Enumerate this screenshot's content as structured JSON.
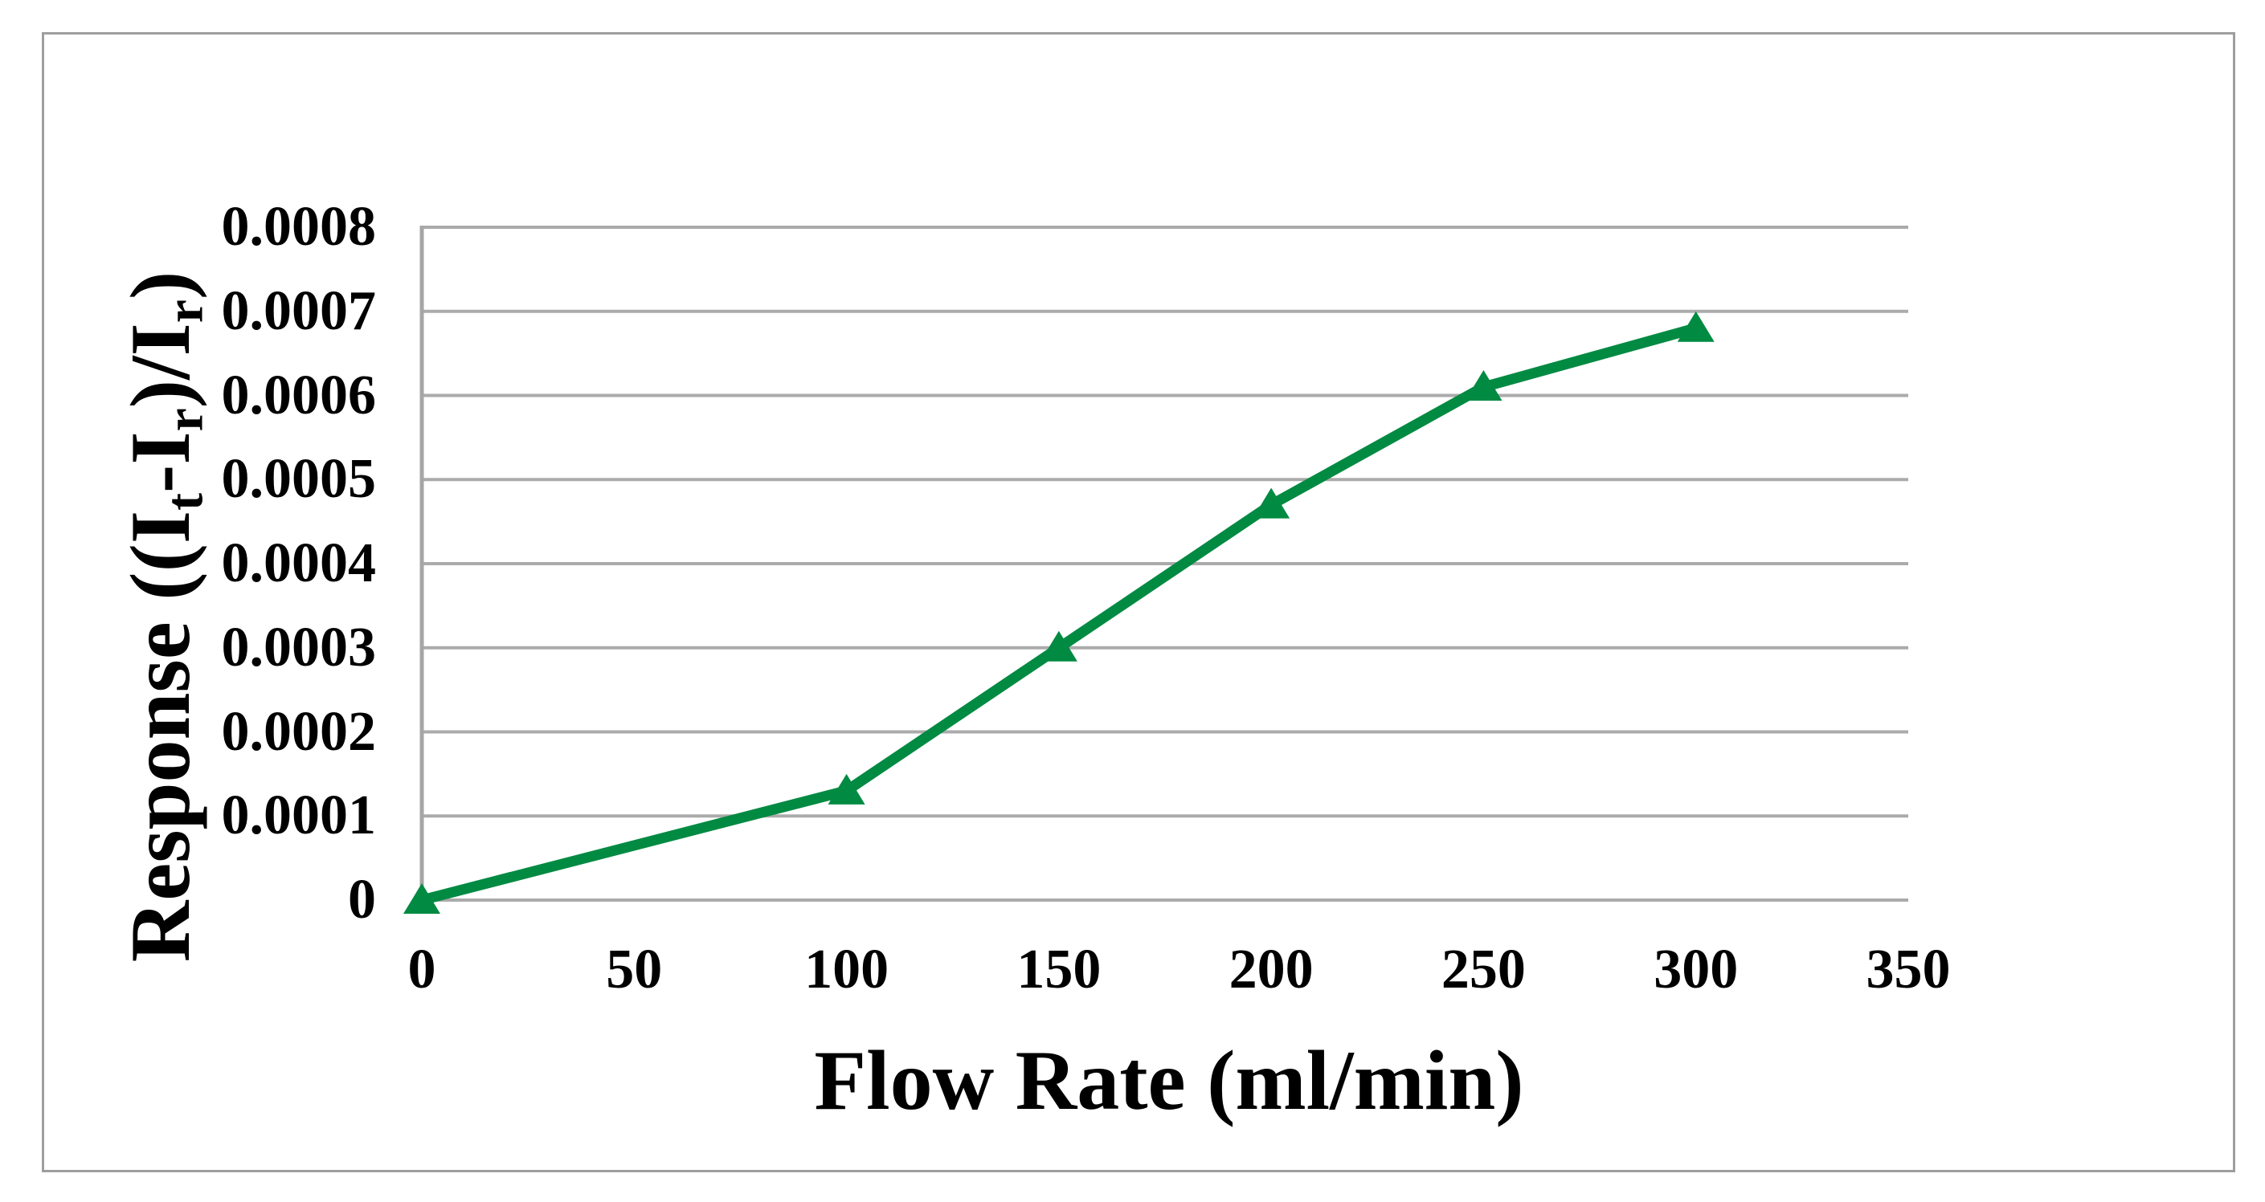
{
  "chart_data": {
    "type": "line",
    "title": "",
    "xlabel": "Flow Rate (ml/min)",
    "ylabel": "Response ((It-Ir)/Ir)",
    "ylabel_parts": [
      {
        "t": "Response ((I"
      },
      {
        "t": "t",
        "sub": true
      },
      {
        "t": "-I"
      },
      {
        "t": "r",
        "sub": true
      },
      {
        "t": ")/I"
      },
      {
        "t": "r",
        "sub": true
      },
      {
        "t": ")"
      }
    ],
    "x": [
      0,
      100,
      150,
      200,
      250,
      300
    ],
    "y": [
      0,
      0.00013,
      0.0003,
      0.00047,
      0.00061,
      0.00068
    ],
    "x_ticks": [
      "0",
      "50",
      "100",
      "150",
      "200",
      "250",
      "300",
      "350"
    ],
    "y_ticks": [
      "0.0008",
      "0.0007",
      "0.0006",
      "0.0005",
      "0.0004",
      "0.0003",
      "0.0002",
      "0.0001",
      "0"
    ],
    "xlim": [
      0,
      350
    ],
    "ylim": [
      0,
      0.0008
    ],
    "grid": "horizontal",
    "legend": "none",
    "marker": "triangle-up",
    "line_color": "#008a42",
    "gridline_color": "#ababab",
    "axis_color": "#a6a6a6",
    "text_color": "#000000",
    "border_color": "#9e9e9e",
    "background_color": "#ffffff"
  }
}
